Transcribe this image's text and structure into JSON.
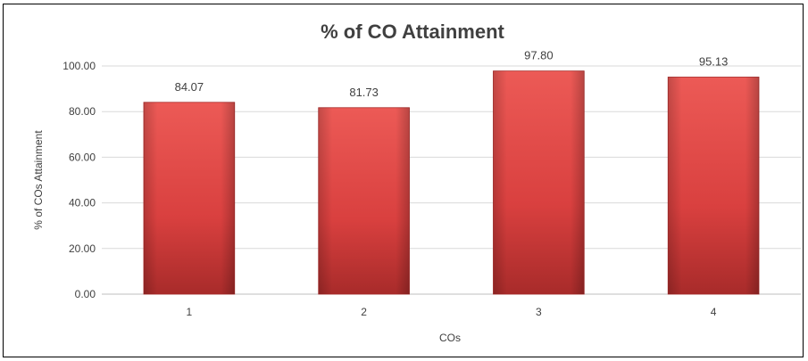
{
  "chart_data": {
    "type": "bar",
    "title": "% of CO Attainment",
    "xlabel": "COs",
    "ylabel": "% of  COs Attainment",
    "categories": [
      "1",
      "2",
      "3",
      "4"
    ],
    "series": [
      {
        "values": [
          84.07,
          81.73,
          97.8,
          95.13
        ]
      }
    ],
    "data_labels": [
      "84.07",
      "81.73",
      "97.80",
      "95.13"
    ],
    "ylim": [
      0,
      100
    ],
    "yticks": [
      0,
      20,
      40,
      60,
      80,
      100
    ],
    "ytick_labels": [
      "0.00",
      "20.00",
      "40.00",
      "60.00",
      "80.00",
      "100.00"
    ],
    "grid": true,
    "legend": "none",
    "bar_color": "#d9403f",
    "bar_color_light": "#ec5a56",
    "bar_color_dark": "#a82b2a"
  }
}
